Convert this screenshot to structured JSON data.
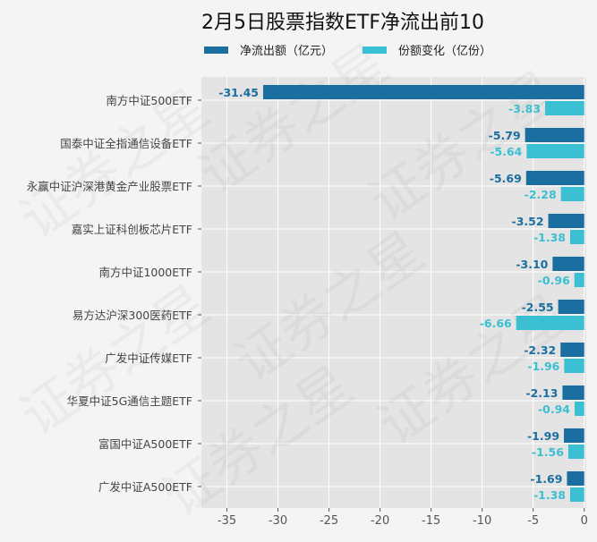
{
  "chart_data": {
    "type": "bar",
    "orientation": "horizontal",
    "title": "2月5日股票指数ETF净流出前10",
    "watermark": "证券之星",
    "categories": [
      "南方中证500ETF",
      "国泰中证全指通信设备ETF",
      "永赢中证沪深港黄金产业股票ETF",
      "嘉实上证科创板芯片ETF",
      "南方中证1000ETF",
      "易方达沪深300医药ETF",
      "广发中证传媒ETF",
      "华夏中证5G通信主题ETF",
      "富国中证A500ETF",
      "广发中证A500ETF"
    ],
    "series": [
      {
        "name": "净流出额（亿元）",
        "color": "#1a6fa0",
        "values": [
          -31.45,
          -5.79,
          -5.69,
          -3.52,
          -3.1,
          -2.55,
          -2.32,
          -2.13,
          -1.99,
          -1.69
        ],
        "labels": [
          "-31.45",
          "-5.79",
          "-5.69",
          "-3.52",
          "-3.10",
          "-2.55",
          "-2.32",
          "-2.13",
          "-1.99",
          "-1.69"
        ]
      },
      {
        "name": "份额变化（亿份）",
        "color": "#3bbfd2",
        "values": [
          -3.83,
          -5.64,
          -2.28,
          -1.38,
          -0.96,
          -6.66,
          -1.96,
          -0.94,
          -1.56,
          -1.38
        ],
        "labels": [
          "-3.83",
          "-5.64",
          "-2.28",
          "-1.38",
          "-0.96",
          "-6.66",
          "-1.96",
          "-0.94",
          "-1.56",
          "-1.38"
        ]
      }
    ],
    "xticks": [
      "-35",
      "-30",
      "-25",
      "-20",
      "-15",
      "-10",
      "-5",
      "0"
    ],
    "xtick_values": [
      -35,
      -30,
      -25,
      -20,
      -15,
      -10,
      -5,
      0
    ],
    "xlim": [
      -37.5,
      0.2
    ],
    "grid": true,
    "legend_placement": "top"
  }
}
